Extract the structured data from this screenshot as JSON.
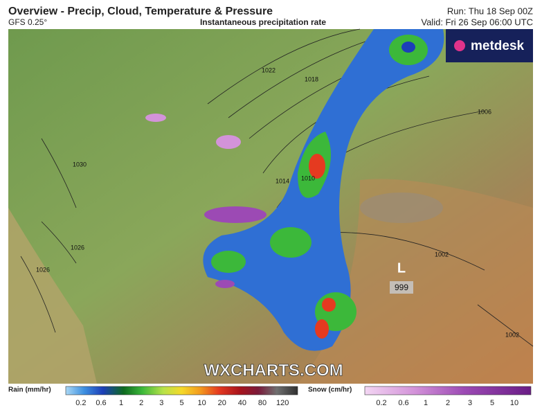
{
  "header": {
    "title": "Overview - Precip, Cloud, Temperature & Pressure",
    "model": "GFS 0.25°",
    "subtitle": "Instantaneous precipitation rate",
    "run": "Run: Thu 18 Sep 00Z",
    "valid": "Valid: Fri 26 Sep 06:00 UTC"
  },
  "logo": "metdesk",
  "watermark": "WXCHARTS.COM",
  "low": {
    "symbol": "L",
    "pressure": "999"
  },
  "isobars": [
    "1022",
    "1018",
    "1014",
    "1010",
    "1006",
    "1002",
    "1030",
    "1026",
    "1026",
    "1002"
  ],
  "legend": {
    "rain": {
      "title": "Rain (mm/hr)",
      "ticks": [
        0.2,
        0.6,
        1,
        2,
        3,
        5,
        10,
        20,
        40,
        80,
        120
      ]
    },
    "snow": {
      "title": "Snow (cm/hr)",
      "ticks": [
        0.2,
        0.6,
        1,
        2,
        3,
        5,
        10
      ]
    }
  }
}
